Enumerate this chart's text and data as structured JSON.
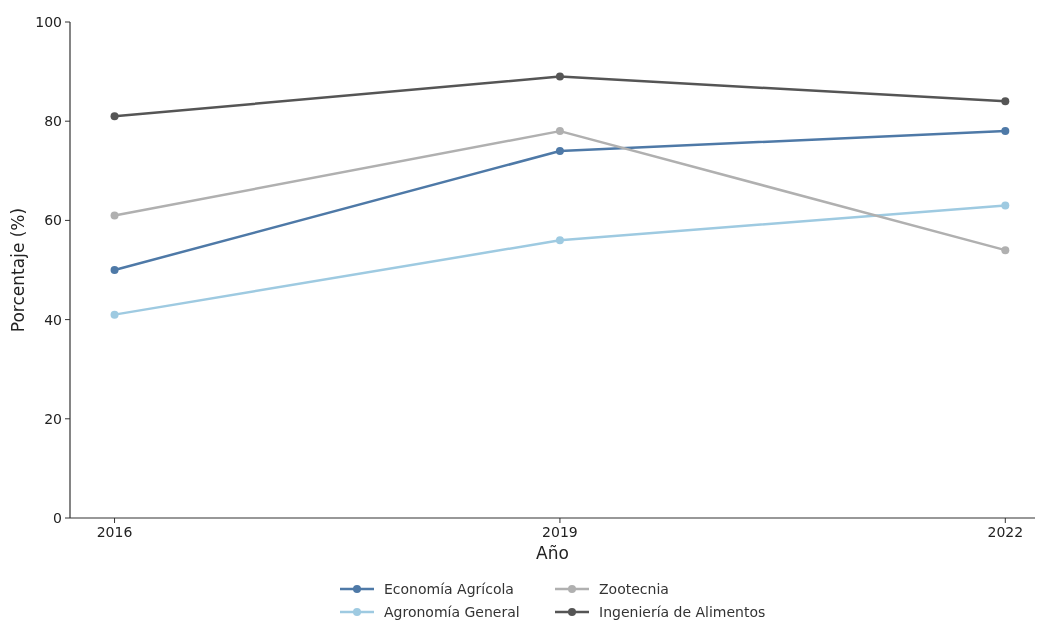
{
  "chart_data": {
    "type": "line",
    "xlabel": "Año",
    "ylabel": "Porcentaje (%)",
    "x": [
      2016,
      2019,
      2022
    ],
    "series": [
      {
        "name": "Economía Agrícola",
        "color": "#4e79a7",
        "values": [
          50,
          74,
          78
        ]
      },
      {
        "name": "Agronomía General",
        "color": "#9ecae1",
        "values": [
          41,
          56,
          63
        ]
      },
      {
        "name": "Zootecnia",
        "color": "#b0b0b0",
        "values": [
          61,
          78,
          54
        ]
      },
      {
        "name": "Ingeniería de Alimentos",
        "color": "#555555",
        "values": [
          81,
          89,
          84
        ]
      }
    ],
    "xlim": [
      2015.7,
      2022.2
    ],
    "xticks": [
      2016,
      2019,
      2022
    ],
    "ylim": [
      0,
      100
    ],
    "yticks": [
      0,
      20,
      40,
      60,
      80,
      100
    ],
    "grid": false,
    "legend": "bottom",
    "marker": "circle",
    "line_style": "solid"
  }
}
